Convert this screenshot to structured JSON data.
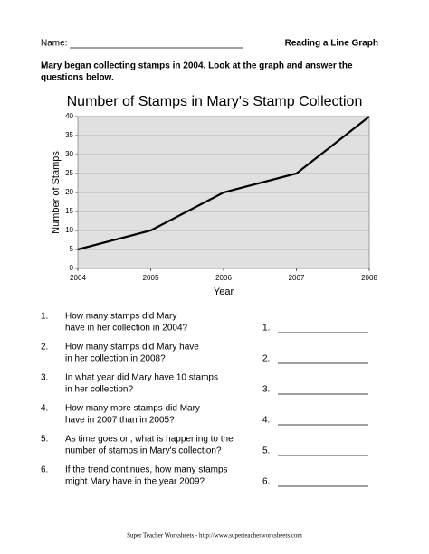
{
  "header": {
    "name_label": "Name:",
    "title": "Reading a Line Graph"
  },
  "intro": [
    "Mary began collecting stamps in 2004.  Look at the graph and answer the",
    "questions below."
  ],
  "chart_data": {
    "type": "line",
    "title": "Number of Stamps in Mary's Stamp Collection",
    "x_label": "Year",
    "y_label": "Number of Stamps",
    "x": [
      2004,
      2005,
      2006,
      2007,
      2008
    ],
    "values": [
      5,
      10,
      20,
      25,
      40
    ],
    "color": "#000000",
    "xlim": [
      2004,
      2008
    ],
    "xticks": [
      2004,
      2005,
      2006,
      2007,
      2008
    ],
    "ylim": [
      0,
      40
    ],
    "yticks": [
      0,
      5,
      10,
      15,
      20,
      25,
      30,
      35,
      40
    ],
    "grid": true
  },
  "questions": [
    {
      "number": "1.",
      "lines": [
        "How many stamps did Mary",
        "have in her collection in 2004?"
      ],
      "answer": "1."
    },
    {
      "number": "2.",
      "lines": [
        "How many stamps did Mary have",
        "in her collection in 2008?"
      ],
      "answer": "2."
    },
    {
      "number": "3.",
      "lines": [
        "In what year did Mary have 10 stamps",
        "in her collection?"
      ],
      "answer": "3."
    },
    {
      "number": "4.",
      "lines": [
        "How many more stamps did Mary",
        "have in 2007 than in 2005?"
      ],
      "answer": "4."
    },
    {
      "number": "5.",
      "lines": [
        "As time goes on, what is happening to the",
        "number of stamps in Mary's collection?"
      ],
      "answer": "5."
    },
    {
      "number": "6.",
      "lines": [
        "If the trend continues, how many stamps",
        "might Mary have in the year 2009?"
      ],
      "answer": "6."
    }
  ],
  "footer": "Super Teacher Worksheets - http://www.superteacherworksheets.com"
}
